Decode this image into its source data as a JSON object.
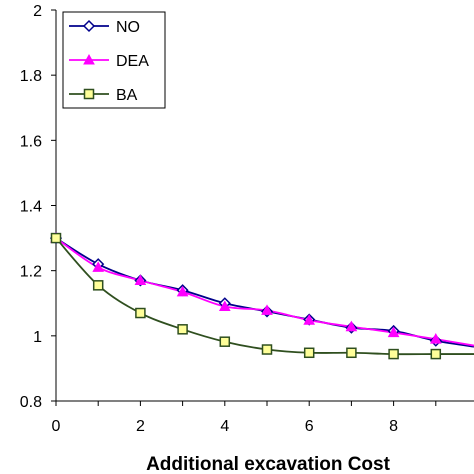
{
  "chart_data": {
    "type": "line",
    "title": "",
    "xlabel": "Additional excavation Cost",
    "ylabel": "",
    "xlim": [
      0,
      10
    ],
    "ylim": [
      0.8,
      2
    ],
    "x_ticks": [
      "0",
      "2",
      "4",
      "6",
      "8"
    ],
    "y_ticks": [
      "0.8",
      "1",
      "1.2",
      "1.4",
      "1.6",
      "1.8",
      "2"
    ],
    "grid": false,
    "legend_position": "top-left",
    "x": [
      0,
      1,
      2,
      3,
      4,
      5,
      6,
      7,
      8,
      9,
      10
    ],
    "series": [
      {
        "name": "NO",
        "color": "#00008b",
        "marker": "diamond",
        "values": [
          1.3,
          1.22,
          1.17,
          1.14,
          1.1,
          1.075,
          1.05,
          1.025,
          1.015,
          0.985,
          0.965
        ]
      },
      {
        "name": "DEA",
        "color": "#ff00ff",
        "marker": "triangle",
        "values": [
          1.3,
          1.21,
          1.17,
          1.135,
          1.09,
          1.078,
          1.048,
          1.028,
          1.01,
          0.99,
          0.968
        ]
      },
      {
        "name": "BA",
        "color": "#2f4f1f",
        "marker": "square",
        "values": [
          1.3,
          1.155,
          1.07,
          1.02,
          0.982,
          0.958,
          0.948,
          0.948,
          0.944,
          0.944,
          0.944
        ]
      }
    ]
  }
}
